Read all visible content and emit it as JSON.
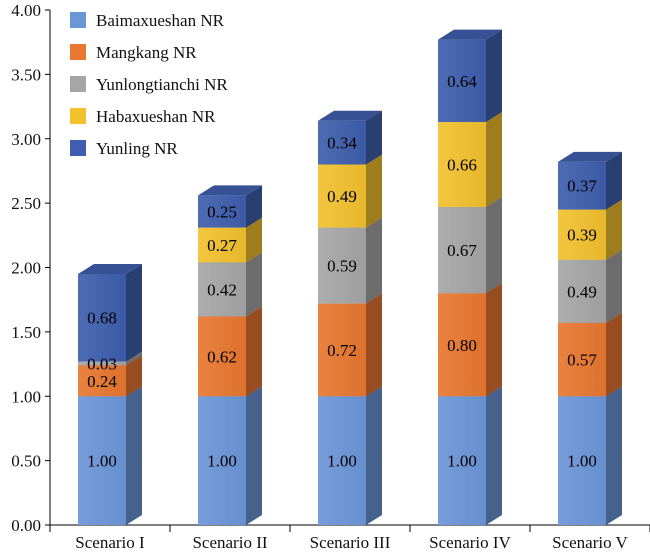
{
  "chart_data": {
    "type": "bar",
    "stacked": true,
    "title": "",
    "xlabel": "",
    "ylabel": "",
    "ylim": [
      0,
      4.0
    ],
    "yticks": [
      "0.00",
      "0.50",
      "1.00",
      "1.50",
      "2.00",
      "2.50",
      "3.00",
      "3.50",
      "4.00"
    ],
    "grid": false,
    "legend_position": "top-left",
    "categories": [
      "Scenario I",
      "Scenario II",
      "Scenario III",
      "Scenario IV",
      "Scenario V"
    ],
    "series": [
      {
        "name": "Baimaxueshan NR",
        "color": "#6b96d8",
        "values": [
          1.0,
          1.0,
          1.0,
          1.0,
          1.0
        ],
        "labels": [
          "1.00",
          "1.00",
          "1.00",
          "1.00",
          "1.00"
        ]
      },
      {
        "name": "Mangkang NR",
        "color": "#e8772f",
        "values": [
          0.24,
          0.62,
          0.72,
          0.8,
          0.57
        ],
        "labels": [
          "0.24",
          "0.62",
          "0.72",
          "0.80",
          "0.57"
        ]
      },
      {
        "name": "Yunlongtianchi NR",
        "color": "#a6a6a6",
        "values": [
          0.03,
          0.42,
          0.59,
          0.67,
          0.49
        ],
        "labels": [
          "0.03",
          "0.42",
          "0.59",
          "0.67",
          "0.49"
        ]
      },
      {
        "name": "Habaxueshan NR",
        "color": "#f2c12e",
        "values": [
          0.0,
          0.27,
          0.49,
          0.66,
          0.39
        ],
        "labels": [
          "",
          "0.27",
          "0.49",
          "0.66",
          "0.39"
        ]
      },
      {
        "name": "Yunling NR",
        "color": "#3f5fae",
        "values": [
          0.68,
          0.25,
          0.34,
          0.64,
          0.37
        ],
        "labels": [
          "0.68",
          "0.25",
          "0.34",
          "0.64",
          "0.37"
        ]
      }
    ]
  }
}
